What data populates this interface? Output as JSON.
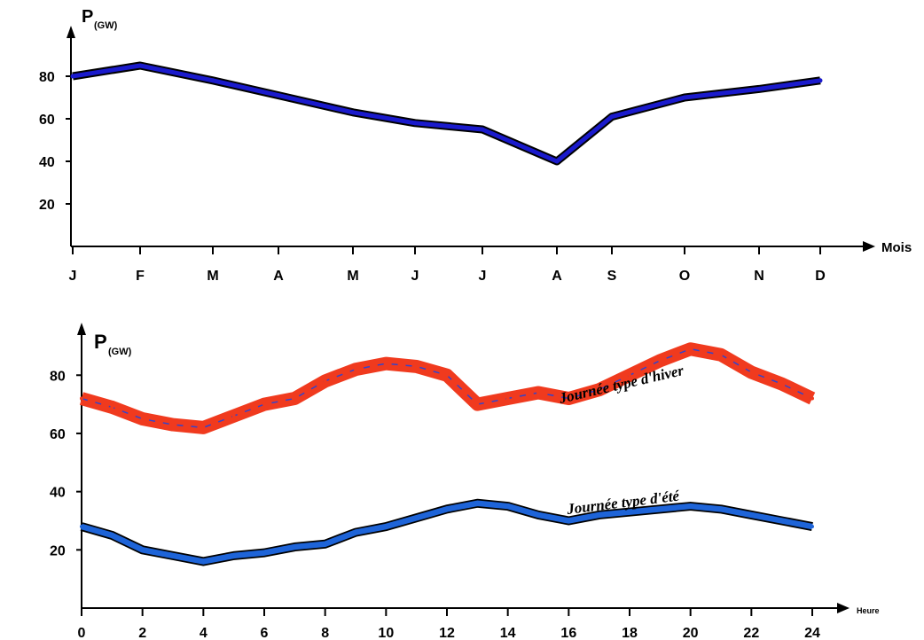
{
  "chart_data": [
    {
      "type": "line",
      "ylabel_main": "P",
      "ylabel_sub": "(GW)",
      "xlabel": "Mois",
      "categories": [
        "J",
        "F",
        "M",
        "A",
        "M",
        "J",
        "J",
        "A",
        "S",
        "O",
        "N",
        "D"
      ],
      "series": [
        {
          "values": [
            80,
            85,
            78,
            71,
            63,
            58,
            55,
            40,
            61,
            70,
            74,
            78
          ],
          "color": "#1a1acc"
        }
      ],
      "yticks": [
        20,
        40,
        60,
        80
      ],
      "ylim": [
        0,
        100
      ],
      "grid": false
    },
    {
      "type": "line",
      "ylabel_main": "P",
      "ylabel_sub": "(GW)",
      "xlabel": "Heure",
      "xticks": [
        0,
        2,
        4,
        6,
        8,
        10,
        12,
        14,
        16,
        18,
        20,
        22,
        24
      ],
      "xlim": [
        0,
        24
      ],
      "yticks": [
        20,
        40,
        60,
        80
      ],
      "ylim": [
        0,
        95
      ],
      "grid": false,
      "series": [
        {
          "name": "Journée type d'hiver",
          "color": "#f03a1e",
          "x": [
            0,
            1,
            2,
            3,
            4,
            5,
            6,
            7,
            8,
            9,
            10,
            11,
            12,
            13,
            14,
            15,
            16,
            17,
            18,
            19,
            20,
            21,
            22,
            23,
            24
          ],
          "values": [
            72,
            69,
            65,
            63,
            62,
            66,
            70,
            72,
            78,
            82,
            84,
            83,
            80,
            70,
            72,
            74,
            72,
            75,
            80,
            85,
            89,
            87,
            81,
            77,
            72
          ]
        },
        {
          "name": "Journée type d'été",
          "color": "#1e64d8",
          "x": [
            0,
            1,
            2,
            3,
            4,
            5,
            6,
            7,
            8,
            9,
            10,
            11,
            12,
            13,
            14,
            15,
            16,
            17,
            18,
            19,
            20,
            21,
            22,
            23,
            24
          ],
          "values": [
            28,
            25,
            20,
            18,
            16,
            18,
            19,
            21,
            22,
            26,
            28,
            31,
            34,
            36,
            35,
            32,
            30,
            32,
            33,
            34,
            35,
            34,
            32,
            30,
            28
          ]
        }
      ]
    }
  ]
}
